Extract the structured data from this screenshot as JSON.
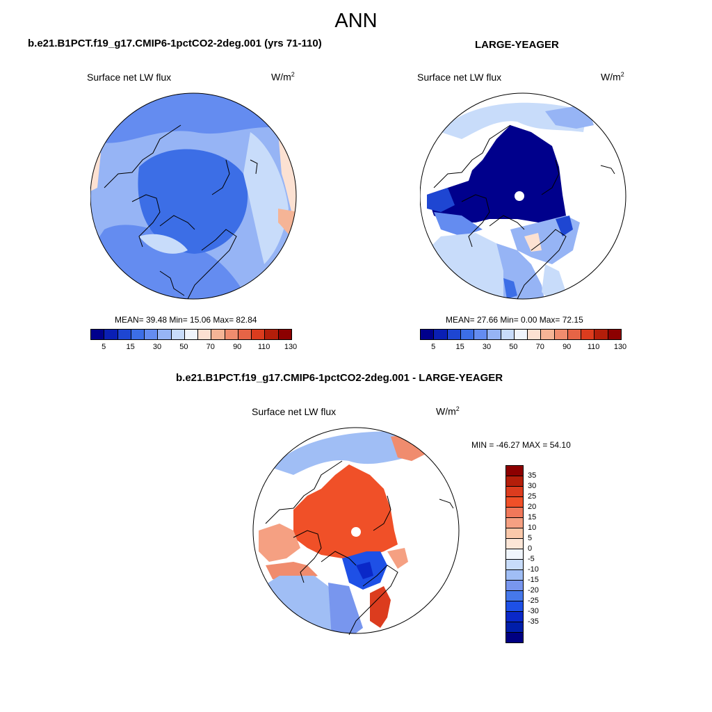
{
  "title": "ANN",
  "panels": [
    {
      "case": "b.e21.B1PCT.f19_g17.CMIP6-1pctCO2-2deg.001 (yrs 71-110)",
      "variable": "Surface net LW flux",
      "units_base": "W/m",
      "units_exp": "2",
      "stats": "MEAN=  39.48  Min=  15.06  Max=  82.84"
    },
    {
      "case": "LARGE-YEAGER",
      "variable": "Surface net LW flux",
      "units_base": "W/m",
      "units_exp": "2",
      "stats": "MEAN=  27.66  Min=   0.00  Max=  72.15"
    }
  ],
  "diff": {
    "case": "b.e21.B1PCT.f19_g17.CMIP6-1pctCO2-2deg.001 - LARGE-YEAGER",
    "variable": "Surface net LW flux",
    "units_base": "W/m",
    "units_exp": "2",
    "minmax": "MIN = -46.27 MAX =  54.10"
  },
  "colorbar_abs": {
    "colors": [
      "#00008c",
      "#0a1fb4",
      "#1e46d2",
      "#3c6ee6",
      "#648cf0",
      "#96b4f5",
      "#c8dcfa",
      "#f0f5fc",
      "#fce1d2",
      "#f5b496",
      "#f08c6e",
      "#e66446",
      "#dc3c1e",
      "#b41e0a",
      "#8c0000"
    ],
    "tick_labels": [
      "5",
      "15",
      "30",
      "50",
      "70",
      "90",
      "110",
      "130"
    ]
  },
  "colorbar_diff": {
    "colors": [
      "#8c0000",
      "#b41e0a",
      "#dc3c1e",
      "#f05028",
      "#f0785a",
      "#f5a082",
      "#fac8aa",
      "#fce6d7",
      "#f0f5fc",
      "#c8dcfa",
      "#a0bef5",
      "#7896ee",
      "#4678ea",
      "#1e50e6",
      "#0a28c8",
      "#001eaa",
      "#000082"
    ],
    "tick_labels": [
      "35",
      "30",
      "25",
      "20",
      "15",
      "10",
      "5",
      "0",
      "-5",
      "-10",
      "-15",
      "-20",
      "-25",
      "-30",
      "-35"
    ]
  }
}
